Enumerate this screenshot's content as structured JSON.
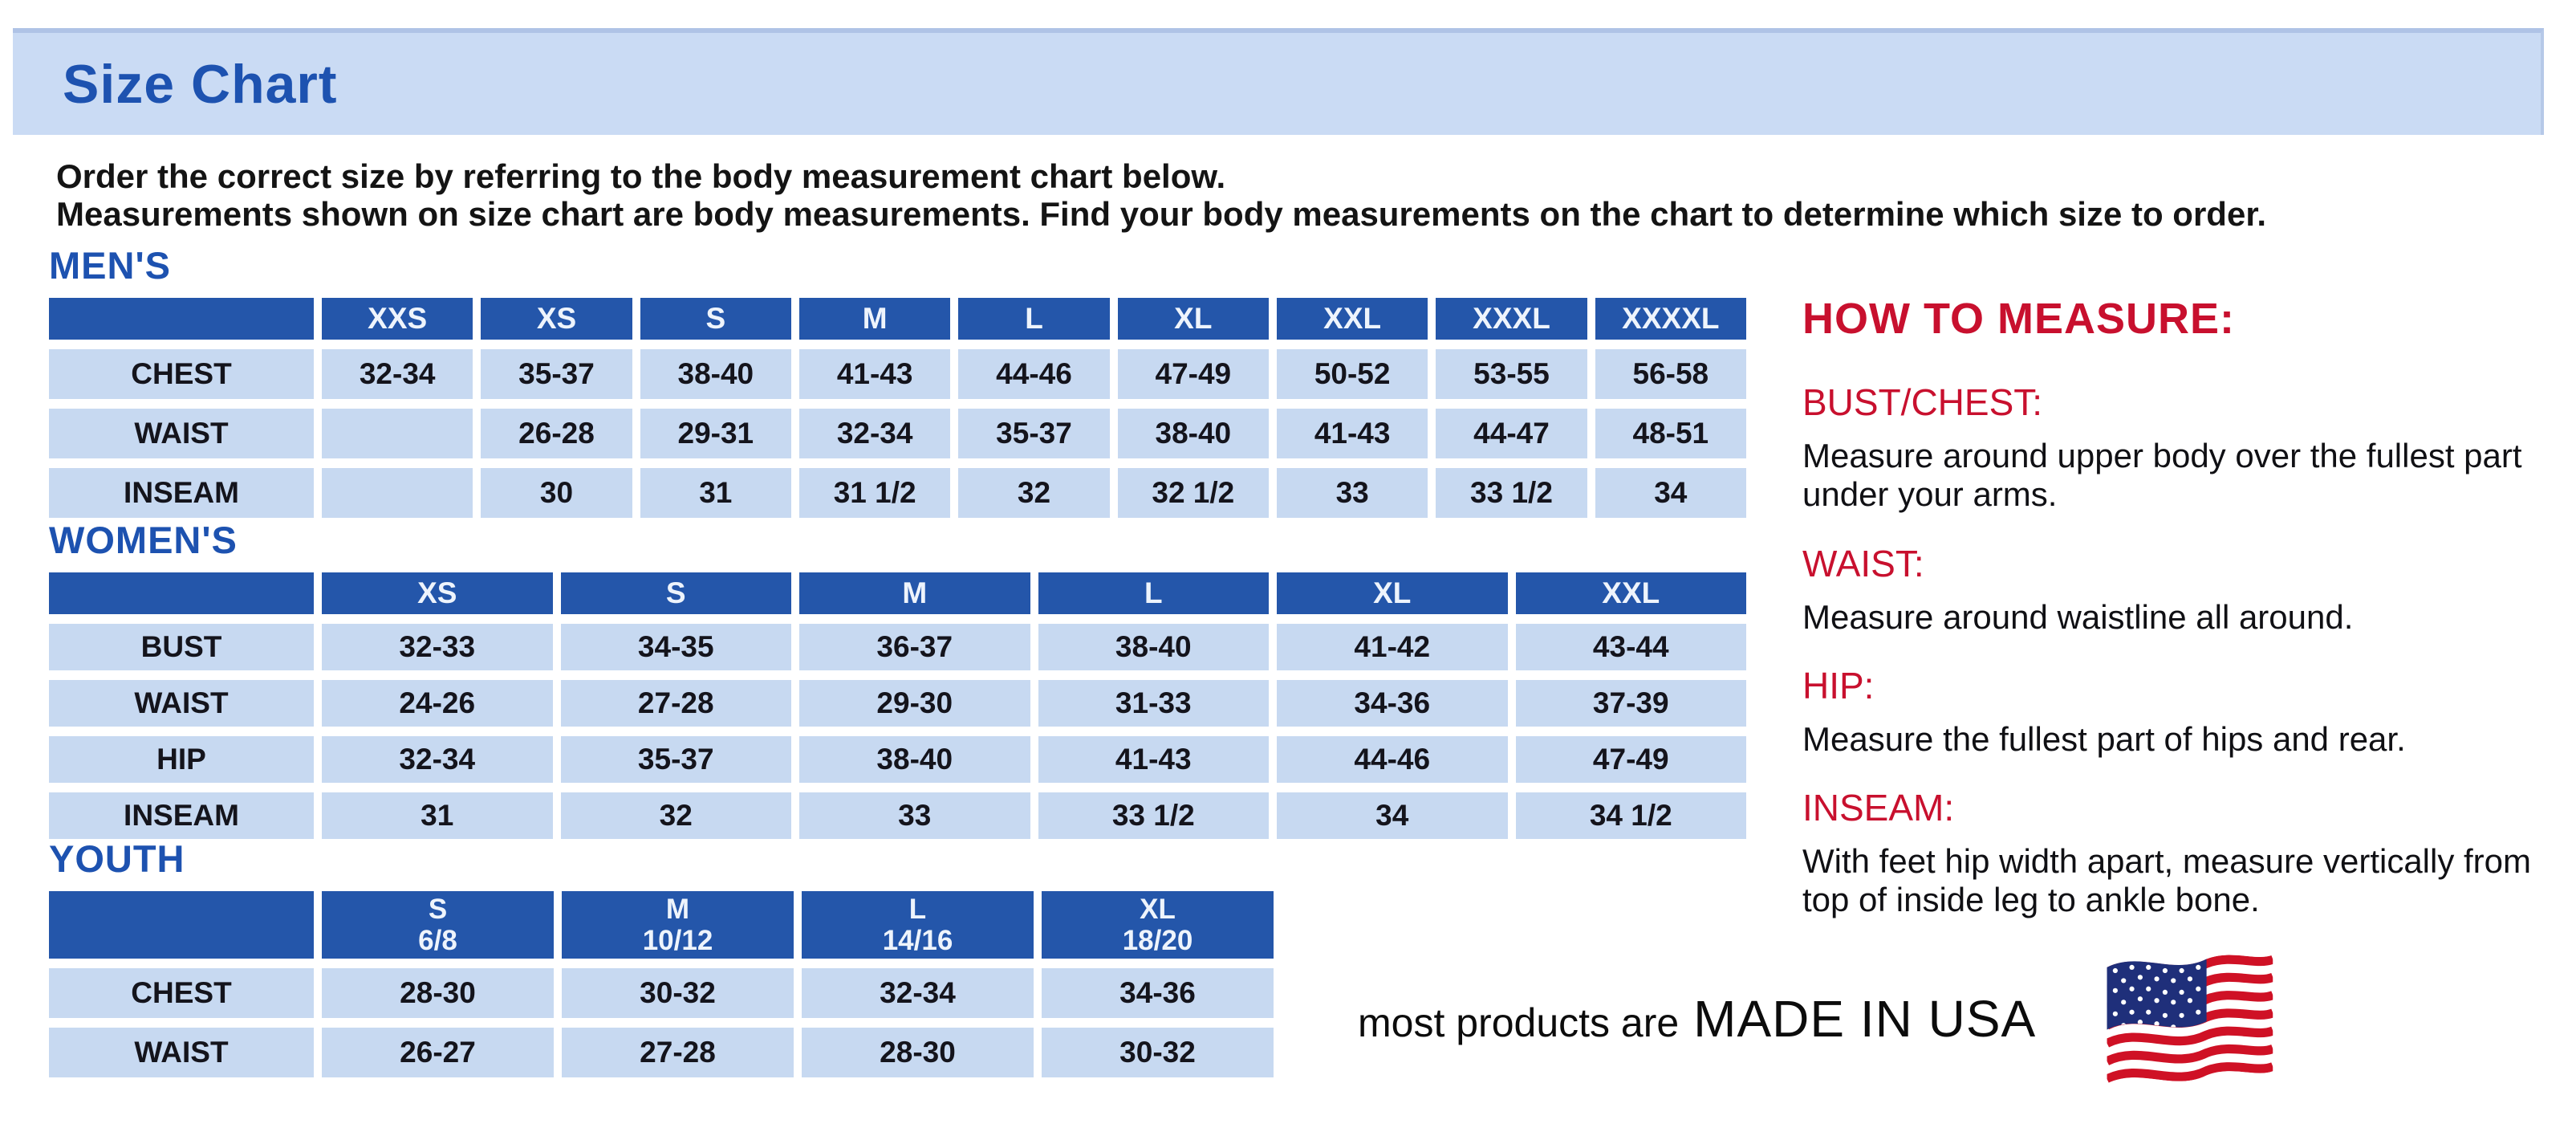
{
  "title": "Size Chart",
  "intro": {
    "line1": "Order the correct size by referring to the body measurement chart below.",
    "line2": "Measurements shown on size chart are body measurements.  Find your body measurements on the chart to determine which size to order."
  },
  "tables": {
    "mens": {
      "heading": "MEN'S",
      "columns": [
        "XXS",
        "XS",
        "S",
        "M",
        "L",
        "XL",
        "XXL",
        "XXXL",
        "XXXXL"
      ],
      "rows": [
        {
          "label": "CHEST",
          "values": [
            "32-34",
            "35-37",
            "38-40",
            "41-43",
            "44-46",
            "47-49",
            "50-52",
            "53-55",
            "56-58"
          ]
        },
        {
          "label": "WAIST",
          "values": [
            "",
            "26-28",
            "29-31",
            "32-34",
            "35-37",
            "38-40",
            "41-43",
            "44-47",
            "48-51"
          ]
        },
        {
          "label": "INSEAM",
          "values": [
            "",
            "30",
            "31",
            "31 1/2",
            "32",
            "32 1/2",
            "33",
            "33 1/2",
            "34"
          ]
        }
      ]
    },
    "womens": {
      "heading": "WOMEN'S",
      "columns": [
        "XS",
        "S",
        "M",
        "L",
        "XL",
        "XXL"
      ],
      "rows": [
        {
          "label": "BUST",
          "values": [
            "32-33",
            "34-35",
            "36-37",
            "38-40",
            "41-42",
            "43-44"
          ]
        },
        {
          "label": "WAIST",
          "values": [
            "24-26",
            "27-28",
            "29-30",
            "31-33",
            "34-36",
            "37-39"
          ]
        },
        {
          "label": "HIP",
          "values": [
            "32-34",
            "35-37",
            "38-40",
            "41-43",
            "44-46",
            "47-49"
          ]
        },
        {
          "label": "INSEAM",
          "values": [
            "31",
            "32",
            "33",
            "33 1/2",
            "34",
            "34 1/2"
          ]
        }
      ]
    },
    "youth": {
      "heading": "YOUTH",
      "columns": [
        {
          "size": "S",
          "range": "6/8"
        },
        {
          "size": "M",
          "range": "10/12"
        },
        {
          "size": "L",
          "range": "14/16"
        },
        {
          "size": "XL",
          "range": "18/20"
        }
      ],
      "rows": [
        {
          "label": "CHEST",
          "values": [
            "28-30",
            "30-32",
            "32-34",
            "34-36"
          ]
        },
        {
          "label": "WAIST",
          "values": [
            "26-27",
            "27-28",
            "28-30",
            "30-32"
          ]
        }
      ]
    }
  },
  "how_to_measure": {
    "heading": "HOW TO MEASURE:",
    "items": [
      {
        "label": "BUST/CHEST:",
        "text": "Measure around upper body over the fullest part under your arms."
      },
      {
        "label": "WAIST:",
        "text": "Measure around waistline all around."
      },
      {
        "label": "HIP:",
        "text": "Measure the fullest part of hips and rear."
      },
      {
        "label": "INSEAM:",
        "text": "With feet hip width apart, measure vertically from top of inside leg to ankle bone."
      }
    ]
  },
  "footer": {
    "prefix": "most products are",
    "emphasis": "MADE IN USA",
    "flag_icon": "us-flag-icon"
  },
  "colors": {
    "accent_blue": "#1d52b0",
    "table_header_blue": "#2456aa",
    "table_cell_blue": "#c7d9f1",
    "banner_bg_blue": "#cadbf4",
    "heading_red": "#c8102e",
    "body_text": "#14141c"
  }
}
